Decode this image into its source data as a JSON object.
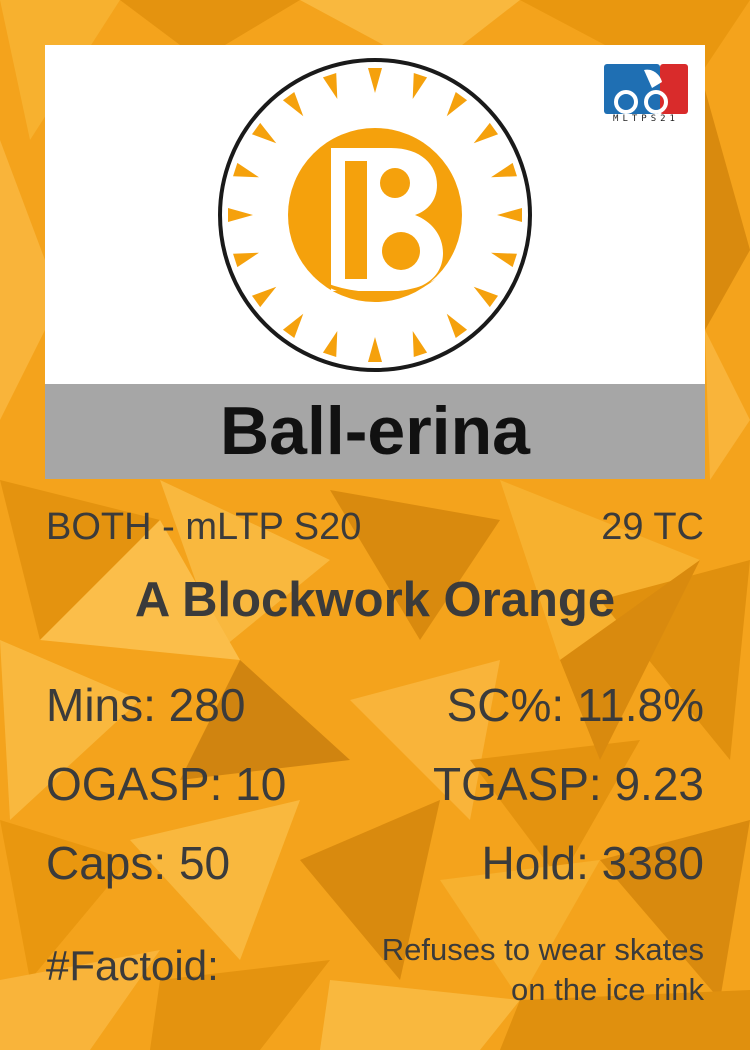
{
  "card": {
    "player_name": "Ball-erina",
    "role_season": "BOTH - mLTP S20",
    "tc": "29 TC",
    "team": "A Blockwork Orange",
    "stats": {
      "mins": "Mins: 280",
      "sc": "SC%: 11.8%",
      "ogasp": "OGASP: 10",
      "tgasp": "TGASP: 9.23",
      "caps": "Caps: 50",
      "hold": "Hold: 3380"
    },
    "factoid_label": "#Factoid:",
    "factoid_line1": "Refuses to wear skates",
    "factoid_line2": "on the ice rink",
    "league_logo_text": "MLTPS21",
    "team_logo_icon": "blockwork-orange-b-logo",
    "league_logo_icon": "mltp-league-logo"
  },
  "colors": {
    "background": "#f4a31c",
    "accent_orange": "#f5a10c",
    "name_bar": "#a6a6a6",
    "text": "#3b3b3b",
    "league_blue": "#1f6fb3",
    "league_red": "#d92b2b"
  }
}
